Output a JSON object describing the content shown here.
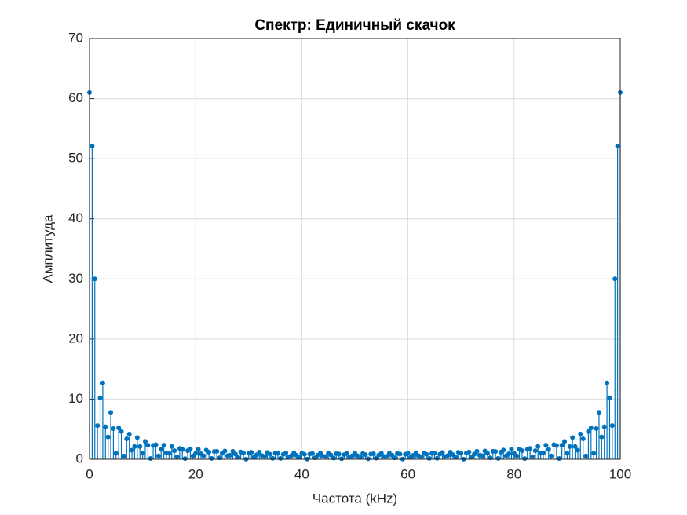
{
  "chart_data": {
    "type": "stem",
    "title": "Спектр: Единичный скачок",
    "xlabel": "Частота (kHz)",
    "ylabel": "Амплитуда",
    "color": "#0072bd",
    "grid": true,
    "xlim": [
      0,
      100
    ],
    "xticks": [
      0,
      20,
      40,
      60,
      80,
      100
    ],
    "ylim": [
      0,
      70
    ],
    "yticks": [
      0,
      10,
      20,
      30,
      40,
      50,
      60,
      70
    ],
    "x": [
      0,
      0.5,
      1,
      1.5,
      2,
      2.5,
      3,
      3.5,
      4,
      4.5,
      5,
      5.5,
      6,
      6.5,
      7,
      7.5,
      8,
      8.5,
      9,
      9.5,
      10,
      10.5,
      11,
      11.5,
      12,
      12.5,
      13,
      13.5,
      14,
      14.5,
      15,
      15.5,
      16,
      16.5,
      17,
      17.5,
      18,
      18.5,
      19,
      19.5,
      20,
      20.5,
      21,
      21.5,
      22,
      22.5,
      23,
      23.5,
      24,
      24.5,
      25,
      25.5,
      26,
      26.5,
      27,
      27.5,
      28,
      28.5,
      29,
      29.5,
      30,
      30.5,
      31,
      31.5,
      32,
      32.5,
      33,
      33.5,
      34,
      34.5,
      35,
      35.5,
      36,
      36.5,
      37,
      37.5,
      38,
      38.5,
      39,
      39.5,
      40,
      40.5,
      41,
      41.5,
      42,
      42.5,
      43,
      43.5,
      44,
      44.5,
      45,
      45.5,
      46,
      46.5,
      47,
      47.5,
      48,
      48.5,
      49,
      49.5,
      50,
      50.5,
      51,
      51.5,
      52,
      52.5,
      53,
      53.5,
      54,
      54.5,
      55,
      55.5,
      56,
      56.5,
      57,
      57.5,
      58,
      58.5,
      59,
      59.5,
      60,
      60.5,
      61,
      61.5,
      62,
      62.5,
      63,
      63.5,
      64,
      64.5,
      65,
      65.5,
      66,
      66.5,
      67,
      67.5,
      68,
      68.5,
      69,
      69.5,
      70,
      70.5,
      71,
      71.5,
      72,
      72.5,
      73,
      73.5,
      74,
      74.5,
      75,
      75.5,
      76,
      76.5,
      77,
      77.5,
      78,
      78.5,
      79,
      79.5,
      80,
      80.5,
      81,
      81.5,
      82,
      82.5,
      83,
      83.5,
      84,
      84.5,
      85,
      85.5,
      86,
      86.5,
      87,
      87.5,
      88,
      88.5,
      89,
      89.5,
      90,
      90.5,
      91,
      91.5,
      92,
      92.5,
      93,
      93.5,
      94,
      94.5,
      95,
      95.5,
      96,
      96.5,
      97,
      97.5,
      98,
      98.5,
      99,
      99.5,
      100
    ],
    "values": [
      61,
      52.1,
      30,
      5.6,
      10.2,
      12.7,
      5.4,
      3.7,
      7.8,
      5.1,
      1,
      5.2,
      4.6,
      0.54,
      3.4,
      4.2,
      1.5,
      2.1,
      3.6,
      2.1,
      1,
      2.95,
      2.33,
      0.13,
      2.29,
      2.41,
      0.55,
      1.63,
      2.33,
      1.07,
      1,
      2.12,
      1.42,
      0.41,
      1.8,
      1.63,
      0.12,
      1.42,
      1.71,
      0.56,
      1,
      1.67,
      0.92,
      0.57,
      1.52,
      1.17,
      0.14,
      1.29,
      1.32,
      0.25,
      1,
      1.37,
      0.58,
      0.67,
      1.33,
      0.85,
      0.32,
      1.2,
      1.05,
      0.02,
      1,
      1.16,
      0.34,
      0.75,
      1.18,
      0.61,
      0.46,
      1.13,
      0.83,
      0.16,
      1,
      0.98,
      0.14,
      0.81,
      1.06,
      0.41,
      0.58,
      1.07,
      0.65,
      0.31,
      1,
      0.84,
      0.03,
      0.87,
      0.96,
      0.24,
      0.68,
      1.02,
      0.49,
      0.45,
      1,
      0.7,
      0.19,
      0.92,
      0.86,
      0.08,
      0.77,
      0.97,
      0.34,
      0.58,
      1,
      0.58,
      0.34,
      0.97,
      0.77,
      0.08,
      0.86,
      0.92,
      0.19,
      0.7,
      1,
      0.45,
      0.49,
      1.02,
      0.68,
      0.24,
      0.96,
      0.87,
      0.03,
      0.84,
      1,
      0.31,
      0.65,
      1.07,
      0.58,
      0.41,
      1.06,
      0.81,
      0.14,
      0.98,
      1,
      0.16,
      0.83,
      1.13,
      0.46,
      0.61,
      1.18,
      0.75,
      0.34,
      1.16,
      1,
      0.02,
      1.05,
      1.2,
      0.32,
      0.85,
      1.33,
      0.67,
      0.58,
      1.37,
      1,
      0.25,
      1.32,
      1.29,
      0.14,
      1.17,
      1.52,
      0.57,
      0.92,
      1.67,
      1,
      0.56,
      1.71,
      1.42,
      0.12,
      1.63,
      1.8,
      0.41,
      1.42,
      2.12,
      1,
      1.07,
      2.33,
      1.63,
      0.55,
      2.41,
      2.29,
      0.13,
      2.33,
      2.95,
      1,
      2.1,
      3.6,
      2.1,
      1.5,
      4.2,
      3.4,
      0.54,
      4.6,
      5.2,
      1,
      5.1,
      7.8,
      3.7,
      5.4,
      12.7,
      10.2,
      5.6,
      30,
      52.1,
      61
    ]
  }
}
